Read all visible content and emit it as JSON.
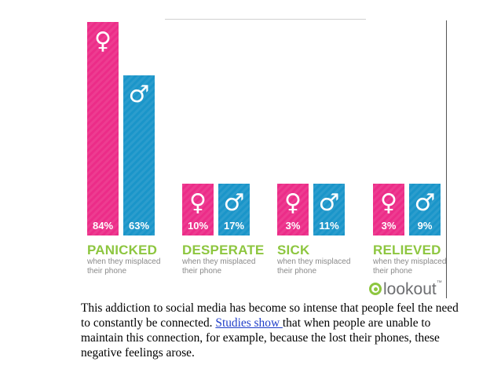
{
  "chart_data": {
    "type": "bar",
    "categories": [
      "PANICKED",
      "DESPERATE",
      "SICK",
      "RELIEVED"
    ],
    "category_subtitles": [
      "when they misplaced their phone",
      "when they misplaced their phone",
      "when they misplaced their phone",
      "when they misplaced their phone"
    ],
    "series": [
      {
        "symbol": "♀",
        "color": "#ec2c88",
        "values": [
          84,
          10,
          3,
          3
        ]
      },
      {
        "symbol": "♂",
        "color": "#1a95c9",
        "values": [
          63,
          17,
          11,
          9
        ]
      }
    ],
    "value_labels": [
      [
        "84%",
        "10%",
        "3%",
        "3%"
      ],
      [
        "63%",
        "17%",
        "11%",
        "9%"
      ]
    ],
    "label_color": "#8dc63f",
    "ylim": [
      0,
      84
    ]
  },
  "logo": {
    "text": "lookout",
    "tm": "™"
  },
  "caption": {
    "before": "This addiction to social media has become so intense that people feel the need to constantly be connected. ",
    "link": "Studies show ",
    "after": "that when people are unable to maintain this connection, for example, because the lost their phones, these negative feelings arose."
  }
}
